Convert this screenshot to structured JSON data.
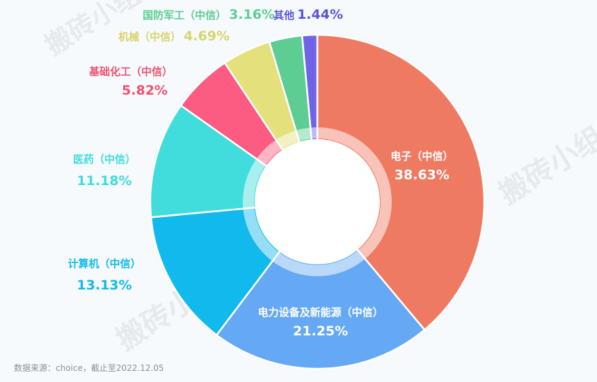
{
  "chart_data": {
    "type": "pie",
    "donut": true,
    "unit": "%",
    "slices": [
      {
        "name": "电子（中信）",
        "value": 38.63,
        "label": "38.63%",
        "color": "#ef7a62"
      },
      {
        "name": "电力设备及新能源（中信）",
        "value": 21.25,
        "label": "21.25%",
        "color": "#65a8f4"
      },
      {
        "name": "计算机（中信）",
        "value": 13.13,
        "label": "13.13%",
        "color": "#12b9ec"
      },
      {
        "name": "医药（中信）",
        "value": 11.18,
        "label": "11.18%",
        "color": "#41dcdc"
      },
      {
        "name": "基础化工（中信）",
        "value": 5.82,
        "label": "5.82%",
        "color": "#fc5b82"
      },
      {
        "name": "机械（中信）",
        "value": 4.69,
        "label": "4.69%",
        "color": "#e4e17d"
      },
      {
        "name": "国防军工（中信）",
        "value": 3.16,
        "label": "3.16%",
        "color": "#5ecd94"
      },
      {
        "name": "其他",
        "value": 1.44,
        "label": "1.44%",
        "color": "#7163e8"
      }
    ],
    "label_colors": {
      "inside": "#ffffff",
      "计算机": "#12b9ec",
      "医药": "#41dcdc",
      "基础化工": "#f2516f",
      "机械": "#d8d46a",
      "国防军工": "#5ecd94",
      "其他": "#5b53e0"
    }
  },
  "watermark": "搬砖小组",
  "source_note": "数据来源：choice，截止至2022.12.05"
}
